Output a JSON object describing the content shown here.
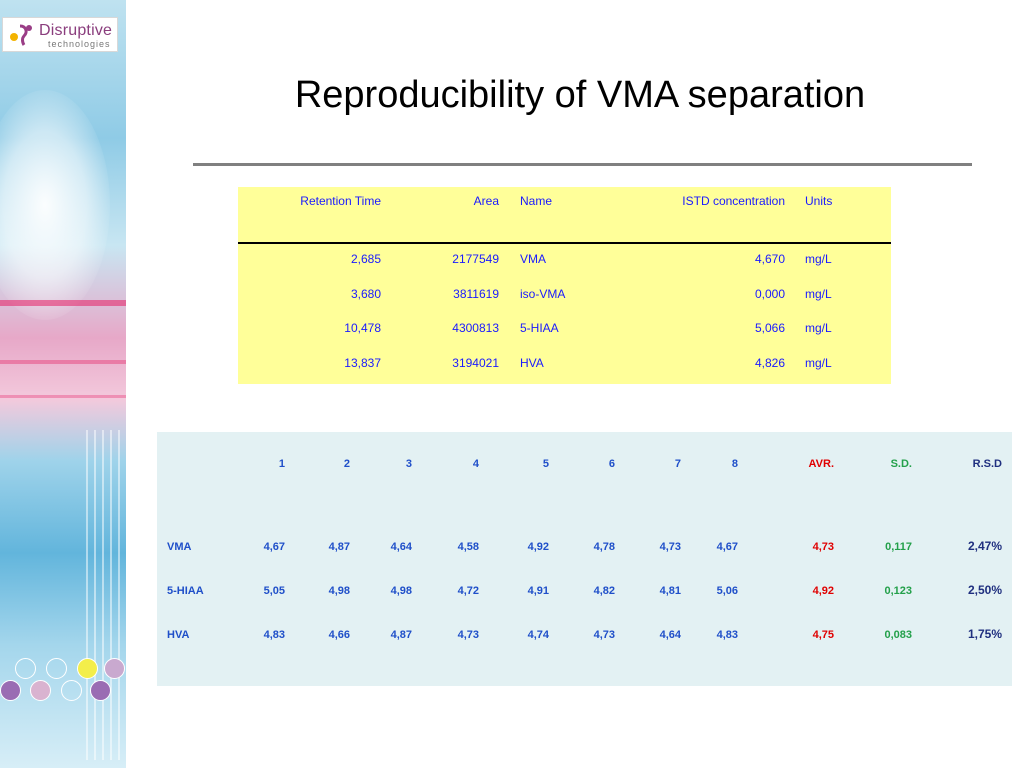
{
  "logo": {
    "name": "Disruptive",
    "sub": "technologies"
  },
  "title": "Reproducibility of VMA separation",
  "table1": {
    "headers": [
      "Retention Time",
      "Area",
      "Name",
      "ISTD concentration",
      "Units"
    ],
    "rows": [
      [
        "2,685",
        "2177549",
        "VMA",
        "4,670",
        "mg/L"
      ],
      [
        "3,680",
        "3811619",
        "iso-VMA",
        "0,000",
        "mg/L"
      ],
      [
        "10,478",
        "4300813",
        "5-HIAA",
        "5,066",
        "mg/L"
      ],
      [
        "13,837",
        "3194021",
        "HVA",
        "4,826",
        "mg/L"
      ]
    ]
  },
  "table2": {
    "headers": [
      "1",
      "2",
      "3",
      "4",
      "5",
      "6",
      "7",
      "8",
      "AVR.",
      "S.D.",
      "R.S.D"
    ],
    "rows": [
      {
        "name": "VMA",
        "values": [
          "4,67",
          "4,87",
          "4,64",
          "4,58",
          "4,92",
          "4,78",
          "4,73",
          "4,67"
        ],
        "avr": "4,73",
        "sd": "0,117",
        "rsd": "2,47%"
      },
      {
        "name": "5-HIAA",
        "values": [
          "5,05",
          "4,98",
          "4,98",
          "4,72",
          "4,91",
          "4,82",
          "4,81",
          "5,06"
        ],
        "avr": "4,92",
        "sd": "0,123",
        "rsd": "2,50%"
      },
      {
        "name": "HVA",
        "values": [
          "4,83",
          "4,66",
          "4,87",
          "4,73",
          "4,74",
          "4,73",
          "4,64",
          "4,83"
        ],
        "avr": "4,75",
        "sd": "0,083",
        "rsd": "1,75%"
      }
    ]
  },
  "colors": {
    "title_rule": "#808080",
    "table1_bg": "#ffff99",
    "table2_bg": "#e3f1f3",
    "avr": "#e00000",
    "sd": "#23a04a",
    "values": "#1f4fc9"
  }
}
